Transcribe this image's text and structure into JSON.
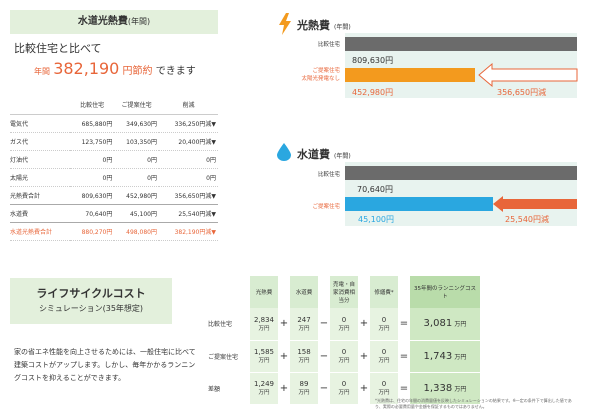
{
  "utility_section": {
    "title": "水道光熱費",
    "title_suffix": "(年間)",
    "compare_text": "比較住宅と比べて",
    "saving_prefix": "年間",
    "saving_amount": "382,190",
    "saving_unit": "円節約",
    "saving_suffix": "できます"
  },
  "cost_table": {
    "headers": [
      "",
      "比較住宅",
      "ご提案住宅",
      "削減"
    ],
    "rows": [
      {
        "label": "電気代",
        "a": "685,880円",
        "b": "349,630円",
        "c": "336,250円減▼"
      },
      {
        "label": "ガス代",
        "a": "123,750円",
        "b": "103,350円",
        "c": "20,400円減▼"
      },
      {
        "label": "灯油代",
        "a": "0円",
        "b": "0円",
        "c": "0円"
      },
      {
        "label": "太陽光",
        "a": "0円",
        "b": "0円",
        "c": "0円"
      },
      {
        "label": "光熱費合計",
        "a": "809,630円",
        "b": "452,980円",
        "c": "356,650円減▼"
      },
      {
        "label": "水道費",
        "a": "70,640円",
        "b": "45,100円",
        "c": "25,540円減▼"
      },
      {
        "label": "水道光熱費合計",
        "a": "880,270円",
        "b": "498,080円",
        "c": "382,190円減▼"
      }
    ]
  },
  "energy_chart": {
    "title": "光熱費",
    "title_suffix": "(年間)",
    "compare_label": "比較住宅",
    "proposed_label": "ご提案住宅",
    "proposed_sub": "太陽光発電なし",
    "compare_value": "809,630円",
    "proposed_value": "452,980円",
    "reduction": "356,650円減",
    "compare_num": 809630,
    "proposed_num": 452980
  },
  "water_chart": {
    "title": "水道費",
    "title_suffix": "(年間)",
    "compare_label": "比較住宅",
    "proposed_label": "ご提案住宅",
    "compare_value": "70,640円",
    "proposed_value": "45,100円",
    "reduction": "25,540円減",
    "compare_num": 70640,
    "proposed_num": 45100
  },
  "lifecycle": {
    "title": "ライフサイクルコスト",
    "subtitle": "シミュレーション(35年想定)",
    "description": "家の省エネ性能を向上させるためには、一般住宅に比べて建築コストがアップします。しかし、毎年かかるランニングコストを抑えることができます。",
    "headers": [
      "光熱費",
      "水道費",
      "売電・自家消費相当分",
      "修繕費*",
      "35年間のランニングコスト"
    ],
    "unit": "万円",
    "rows": [
      {
        "label": "比較住宅",
        "v1": "2,834",
        "v2": "247",
        "v3": "0",
        "v4": "0",
        "total": "3,081"
      },
      {
        "label": "ご提案住宅",
        "v1": "1,585",
        "v2": "158",
        "v3": "0",
        "v4": "0",
        "total": "1,743"
      },
      {
        "label": "差額",
        "v1": "1,249",
        "v2": "89",
        "v3": "0",
        "v4": "0",
        "total": "1,338"
      }
    ],
    "note": "*光熱費は、住宅の年間の消費量値を反映したシミュレーションの結果です。※一定の条件下で算出した値であり、実際の必要費用量や金額を保証するものではありません。"
  },
  "colors": {
    "orange": "#f39a1e",
    "accent": "#e8663a",
    "blue": "#2aa7e0",
    "gray_bar": "#6b6b6b",
    "green": "#e3f0dc"
  }
}
